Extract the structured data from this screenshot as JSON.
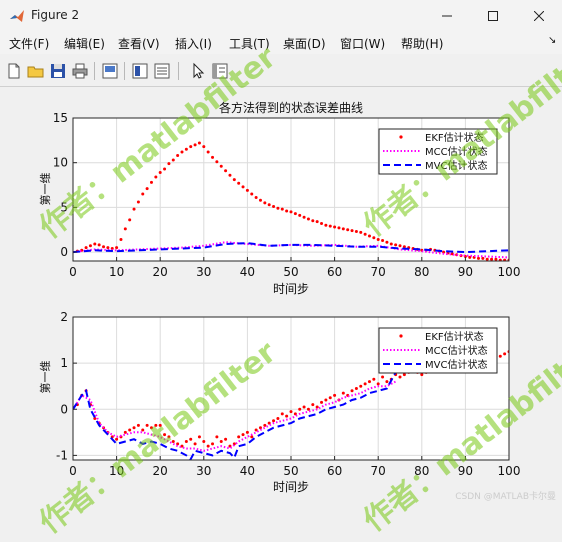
{
  "window": {
    "title": "Figure 2",
    "minimize_icon": "minimize-icon",
    "maximize_icon": "maximize-icon",
    "close_icon": "close-icon"
  },
  "menu": {
    "items": [
      "文件(F)",
      "编辑(E)",
      "查看(V)",
      "插入(I)",
      "工具(T)",
      "桌面(D)",
      "窗口(W)",
      "帮助(H)"
    ],
    "overflow_glyph": "↘"
  },
  "toolbar": {
    "buttons": [
      "new-figure-icon",
      "open-file-icon",
      "save-icon",
      "print-icon",
      "link-plot-icon",
      "colorbar-icon",
      "legend-icon",
      "pointer-icon",
      "property-editor-icon"
    ]
  },
  "watermark": {
    "author_text": "作者：matlabfilter",
    "footer": "CSDN @MATLAB卡尔曼"
  },
  "colors": {
    "ekf": "#ff0000",
    "mcc": "#ff00ff",
    "mvc": "#0000ff",
    "grid": "#dcdcdc"
  },
  "chart_data": [
    {
      "type": "line",
      "title": "各方法得到的状态误差曲线",
      "xlabel": "时间步",
      "ylabel": "第一维",
      "xlim": [
        0,
        100
      ],
      "ylim": [
        -1,
        15
      ],
      "xticks": [
        0,
        10,
        20,
        30,
        40,
        50,
        60,
        70,
        80,
        90,
        100
      ],
      "yticks": [
        0,
        5,
        10,
        15
      ],
      "grid": true,
      "legend": "top-right",
      "series": [
        {
          "name": "EKF估计状态",
          "style": "dotted",
          "color": "#ff0000",
          "x": [
            1,
            2,
            3,
            4,
            5,
            6,
            7,
            8,
            9,
            10,
            11,
            12,
            13,
            14,
            15,
            16,
            17,
            18,
            19,
            20,
            21,
            22,
            23,
            24,
            25,
            26,
            27,
            28,
            29,
            30,
            31,
            32,
            33,
            34,
            35,
            36,
            37,
            38,
            39,
            40,
            41,
            42,
            43,
            44,
            45,
            46,
            47,
            48,
            49,
            50,
            51,
            52,
            53,
            54,
            55,
            56,
            57,
            58,
            59,
            60,
            61,
            62,
            63,
            64,
            65,
            66,
            67,
            68,
            69,
            70,
            71,
            72,
            73,
            74,
            75,
            76,
            77,
            78,
            79,
            80,
            81,
            82,
            83,
            84,
            85,
            86,
            87,
            88,
            89,
            90,
            91,
            92,
            93,
            94,
            95,
            96,
            97,
            98,
            99,
            100
          ],
          "values": [
            0.1,
            0.2,
            0.5,
            0.7,
            0.9,
            0.8,
            0.6,
            0.5,
            0.4,
            0.5,
            1.4,
            2.6,
            3.6,
            4.8,
            5.6,
            6.5,
            7.1,
            7.8,
            8.4,
            8.9,
            9.3,
            9.9,
            10.3,
            10.8,
            11.2,
            11.5,
            11.8,
            12.0,
            12.2,
            11.8,
            11.2,
            10.6,
            10.1,
            9.6,
            9.1,
            8.6,
            8.1,
            7.7,
            7.3,
            6.9,
            6.5,
            6.1,
            5.8,
            5.5,
            5.3,
            5.1,
            4.9,
            4.8,
            4.6,
            4.5,
            4.3,
            4.1,
            3.9,
            3.7,
            3.5,
            3.4,
            3.2,
            3.0,
            2.9,
            2.8,
            2.7,
            2.6,
            2.5,
            2.4,
            2.3,
            2.2,
            2.0,
            1.8,
            1.6,
            1.4,
            1.3,
            1.1,
            0.9,
            0.8,
            0.7,
            0.6,
            0.5,
            0.4,
            0.3,
            0.2,
            0.2,
            0.3,
            0.2,
            0.1,
            0.0,
            -0.1,
            -0.2,
            -0.3,
            -0.4,
            -0.5,
            -0.6,
            -0.6,
            -0.7,
            -0.7,
            -0.8,
            -0.8,
            -0.8,
            -0.9,
            -0.9,
            -0.9
          ]
        },
        {
          "name": "MCC估计状态",
          "style": "dotted",
          "color": "#ff00ff",
          "x": [
            0,
            5,
            10,
            15,
            20,
            25,
            30,
            35,
            40,
            45,
            50,
            55,
            60,
            65,
            70,
            75,
            80,
            85,
            90,
            95,
            100
          ],
          "values": [
            0.0,
            0.3,
            0.2,
            0.3,
            0.4,
            0.5,
            0.7,
            1.1,
            0.9,
            0.7,
            0.8,
            0.7,
            0.8,
            0.6,
            0.7,
            0.3,
            0.1,
            -0.2,
            -0.4,
            -0.5,
            -0.6
          ]
        },
        {
          "name": "MVC估计状态",
          "style": "dashed",
          "color": "#0000ff",
          "x": [
            0,
            5,
            10,
            15,
            20,
            25,
            30,
            35,
            40,
            45,
            50,
            55,
            60,
            65,
            70,
            75,
            80,
            85,
            90,
            95,
            100
          ],
          "values": [
            0.0,
            0.2,
            0.1,
            0.2,
            0.3,
            0.4,
            0.5,
            0.9,
            1.0,
            0.7,
            0.8,
            0.8,
            0.7,
            0.6,
            0.6,
            0.4,
            0.3,
            0.1,
            0.0,
            0.1,
            0.2
          ]
        }
      ]
    },
    {
      "type": "line",
      "title": "",
      "xlabel": "时间步",
      "ylabel": "第一维",
      "xlim": [
        0,
        100
      ],
      "ylim": [
        -1.1,
        2
      ],
      "xticks": [
        0,
        10,
        20,
        30,
        40,
        50,
        60,
        70,
        80,
        90,
        100
      ],
      "yticks": [
        -1,
        0,
        1,
        2
      ],
      "grid": true,
      "legend": "top-right",
      "series": [
        {
          "name": "EKF估计状态",
          "style": "dotted",
          "color": "#ff0000",
          "x": [
            1,
            2,
            3,
            4,
            5,
            6,
            7,
            8,
            9,
            10,
            11,
            12,
            13,
            14,
            15,
            16,
            17,
            18,
            19,
            20,
            21,
            22,
            23,
            24,
            25,
            26,
            27,
            28,
            29,
            30,
            31,
            32,
            33,
            34,
            35,
            36,
            37,
            38,
            39,
            40,
            41,
            42,
            43,
            44,
            45,
            46,
            47,
            48,
            49,
            50,
            51,
            52,
            53,
            54,
            55,
            56,
            57,
            58,
            59,
            60,
            61,
            62,
            63,
            64,
            65,
            66,
            67,
            68,
            69,
            70,
            71,
            72,
            73,
            74,
            75,
            76,
            77,
            78,
            79,
            80,
            81,
            82,
            83,
            84,
            85,
            86,
            87,
            88,
            89,
            90,
            91,
            92,
            93,
            94,
            95,
            96,
            97,
            98,
            99,
            100
          ],
          "values": [
            0.1,
            0.3,
            0.4,
            0.1,
            -0.2,
            -0.3,
            -0.4,
            -0.5,
            -0.6,
            -0.65,
            -0.6,
            -0.5,
            -0.45,
            -0.4,
            -0.35,
            -0.45,
            -0.35,
            -0.4,
            -0.35,
            -0.35,
            -0.55,
            -0.6,
            -0.7,
            -0.75,
            -0.8,
            -0.7,
            -0.65,
            -0.75,
            -0.6,
            -0.7,
            -0.8,
            -0.75,
            -0.6,
            -0.7,
            -0.65,
            -0.8,
            -0.75,
            -0.6,
            -0.55,
            -0.5,
            -0.6,
            -0.45,
            -0.4,
            -0.35,
            -0.3,
            -0.25,
            -0.2,
            -0.1,
            -0.15,
            -0.05,
            -0.1,
            0.0,
            0.05,
            0.0,
            0.1,
            0.05,
            0.15,
            0.2,
            0.25,
            0.3,
            0.2,
            0.35,
            0.3,
            0.4,
            0.45,
            0.5,
            0.55,
            0.6,
            0.65,
            0.55,
            0.7,
            0.6,
            0.65,
            0.75,
            0.7,
            0.75,
            0.8,
            0.85,
            0.8,
            0.75,
            0.8,
            0.85,
            0.9,
            0.95,
            0.9,
            0.95,
            1.0,
            1.05,
            0.95,
            1.0,
            1.05,
            1.05,
            1.1,
            1.0,
            1.1,
            1.05,
            1.1,
            1.15,
            1.2,
            1.25
          ]
        },
        {
          "name": "MCC估计状态",
          "style": "dotted",
          "color": "#ff00ff",
          "x": [
            0,
            2,
            4,
            6,
            8,
            10,
            12,
            14,
            16,
            18,
            20,
            22,
            24,
            26,
            28,
            30,
            32,
            34,
            36,
            38,
            40,
            42,
            44,
            46,
            48,
            50,
            52,
            54,
            56,
            58,
            60,
            62,
            64,
            66,
            68,
            70,
            72,
            74
          ],
          "values": [
            0.0,
            0.3,
            0.2,
            -0.3,
            -0.5,
            -0.6,
            -0.55,
            -0.5,
            -0.5,
            -0.55,
            -0.6,
            -0.7,
            -0.8,
            -0.85,
            -0.85,
            -0.9,
            -0.85,
            -0.8,
            -0.85,
            -0.7,
            -0.6,
            -0.5,
            -0.4,
            -0.3,
            -0.25,
            -0.2,
            -0.1,
            -0.05,
            0.0,
            0.1,
            0.15,
            0.25,
            0.3,
            0.35,
            0.45,
            0.5,
            0.5,
            0.6
          ]
        },
        {
          "name": "MVC估计状态",
          "style": "dashed",
          "color": "#0000ff",
          "x": [
            0,
            2,
            3,
            4,
            6,
            8,
            10,
            12,
            14,
            16,
            18,
            20,
            22,
            24,
            26,
            27,
            28,
            30,
            32,
            34,
            36,
            37,
            38,
            40,
            42,
            44,
            46,
            48,
            50,
            52,
            54,
            56,
            58,
            60,
            62,
            64,
            66,
            68,
            70,
            72,
            74
          ],
          "values": [
            0.0,
            0.3,
            0.4,
            0.0,
            -0.35,
            -0.55,
            -0.75,
            -0.7,
            -0.65,
            -0.75,
            -0.7,
            -0.75,
            -0.85,
            -0.9,
            -1.0,
            -1.08,
            -0.9,
            -0.95,
            -1.0,
            -0.9,
            -0.95,
            -1.05,
            -0.8,
            -0.75,
            -0.6,
            -0.5,
            -0.4,
            -0.35,
            -0.3,
            -0.2,
            -0.15,
            -0.1,
            0.0,
            0.05,
            0.1,
            0.2,
            0.25,
            0.35,
            0.4,
            0.45,
            0.8
          ]
        }
      ]
    }
  ]
}
